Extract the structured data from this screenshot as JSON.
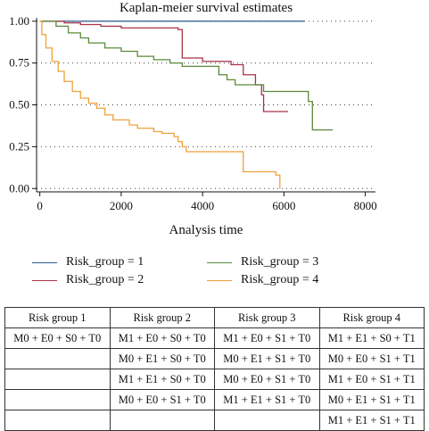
{
  "chart_data": {
    "type": "line",
    "title": "Kaplan-meier survival estimates",
    "xlabel": "Analysis time",
    "ylabel": "",
    "xlim": [
      -80,
      8250
    ],
    "ylim": [
      -0.02,
      1.02
    ],
    "xticks": [
      0,
      2000,
      4000,
      6000,
      8000
    ],
    "yticks": [
      0.0,
      0.25,
      0.5,
      0.75,
      1.0
    ],
    "ytick_labels": [
      "0.00",
      "0.25",
      "0.50",
      "0.75",
      "1.00"
    ],
    "grid": "horizontal dotted",
    "legend_position": "bottom",
    "series": [
      {
        "name": "Risk_group = 1",
        "color": "#2a5c8f",
        "x": [
          0,
          6500
        ],
        "y": [
          1.0,
          1.0
        ]
      },
      {
        "name": "Risk_group = 2",
        "color": "#a8324a",
        "x": [
          0,
          600,
          1000,
          1500,
          2000,
          3400,
          3500,
          4000,
          4700,
          5000,
          5300,
          5450,
          5500,
          6100
        ],
        "y": [
          1.0,
          0.99,
          0.98,
          0.97,
          0.96,
          0.95,
          0.78,
          0.76,
          0.74,
          0.68,
          0.62,
          0.56,
          0.46,
          0.46
        ]
      },
      {
        "name": "Risk_group = 3",
        "color": "#5a8a3a",
        "x": [
          0,
          400,
          700,
          1000,
          1200,
          1600,
          2000,
          2400,
          2800,
          3200,
          3500,
          4000,
          4400,
          4600,
          4800,
          5000,
          5500,
          6000,
          6600,
          6700,
          7200
        ],
        "y": [
          1.0,
          0.97,
          0.93,
          0.9,
          0.87,
          0.84,
          0.82,
          0.79,
          0.77,
          0.75,
          0.73,
          0.73,
          0.68,
          0.65,
          0.62,
          0.62,
          0.58,
          0.58,
          0.52,
          0.35,
          0.35
        ]
      },
      {
        "name": "Risk_group = 4",
        "color": "#f0a03a",
        "x": [
          0,
          50,
          150,
          300,
          450,
          600,
          800,
          1000,
          1200,
          1400,
          1600,
          1800,
          2200,
          2400,
          2800,
          3000,
          3300,
          3400,
          3500,
          3600,
          4000,
          5000,
          5300,
          5800,
          5900
        ],
        "y": [
          1.0,
          0.92,
          0.84,
          0.76,
          0.7,
          0.64,
          0.58,
          0.54,
          0.51,
          0.48,
          0.44,
          0.41,
          0.38,
          0.36,
          0.34,
          0.33,
          0.31,
          0.28,
          0.25,
          0.22,
          0.22,
          0.1,
          0.1,
          0.08,
          0.0
        ]
      }
    ]
  },
  "legend": {
    "items": [
      {
        "label": "Risk_group = 1",
        "color": "#2a5c8f"
      },
      {
        "label": "Risk_group = 3",
        "color": "#5a8a3a"
      },
      {
        "label": "Risk_group = 2",
        "color": "#a8324a"
      },
      {
        "label": "Risk_group = 4",
        "color": "#f0a03a"
      }
    ]
  },
  "table": {
    "headers": [
      "Risk group 1",
      "Risk group 2",
      "Risk group 3",
      "Risk group 4"
    ],
    "rows": [
      [
        "M0 + E0 + S0 + T0",
        "M1 + E0 + S0 + T0",
        "M1 + E0 + S1 + T0",
        "M1 + E1 + S0 + T1"
      ],
      [
        "",
        "M0 + E1 + S0 + T0",
        "M0 + E1 + S1 + T0",
        "M0 + E0 + S1 + T1"
      ],
      [
        "",
        "M1 + E1 + S0 + T0",
        "M0 + E0 + S1 + T0",
        "M1 + E0 + S1 + T1"
      ],
      [
        "",
        "M0 + E0 + S1 + T0",
        "M1 + E1 + S1 + T0",
        "M0 + E1 + S1 + T1"
      ],
      [
        "",
        "",
        "",
        "M1 + E1 + S1 + T1"
      ]
    ]
  }
}
